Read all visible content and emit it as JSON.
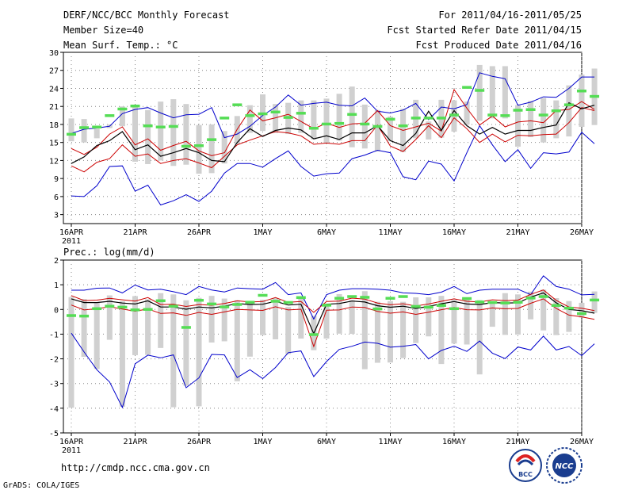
{
  "header": {
    "title": "DERF/NCC/BCC Monthly Forecast",
    "member_size": "Member Size=40",
    "variable": "Mean Surf. Temp.: °C",
    "period": "For 2011/04/16-2011/05/25",
    "refer_date": "Fcst Started Refer Date 2011/04/15",
    "produced_date": "Fcst Produced Date 2011/04/16"
  },
  "footer": {
    "url": "http://cmdp.ncc.cma.gov.cn",
    "credit": "GrADS: COLA/IGES",
    "logo_bcc": "BCC",
    "logo_ncc": "NCC"
  },
  "colors": {
    "envelope": "#0000cc",
    "spread": "#cc0000",
    "mean": "#000000",
    "box": "#d0d0d0",
    "marker": "#55dd55",
    "grid": "#888888"
  },
  "chart_data": [
    {
      "type": "line",
      "title": "Mean Surf. Temp.: °C",
      "x_ticks": [
        "16APR",
        "21APR",
        "26APR",
        "1MAY",
        "6MAY",
        "11MAY",
        "16MAY",
        "21MAY",
        "26MAY"
      ],
      "x_sublabel": "2011",
      "ylim": [
        1.5,
        30
      ],
      "y_ticks": [
        3,
        6,
        9,
        12,
        15,
        18,
        21,
        24,
        27,
        30
      ],
      "grid": true,
      "series": [
        {
          "name": "max",
          "values": [
            16.5,
            17.2,
            17.4,
            17.7,
            19.8,
            20.5,
            20.8,
            19.9,
            19.1,
            19.6,
            19.7,
            20.8,
            15.8,
            16.4,
            17.7,
            19.5,
            20.9,
            22.9,
            21.2,
            21.5,
            21.7,
            21.2,
            21.1,
            22.4,
            20.2,
            19.9,
            20.4,
            21.5,
            18.8,
            20.9,
            20.6,
            21.3,
            26.6,
            26.0,
            25.6,
            21.2,
            21.7,
            22.6,
            22.5,
            24.0,
            25.9,
            25.9
          ]
        },
        {
          "name": "upper",
          "values": [
            14.0,
            13.0,
            14.2,
            16.4,
            17.6,
            14.6,
            15.6,
            13.7,
            14.5,
            15.2,
            13.6,
            12.8,
            13.3,
            17.2,
            20.4,
            18.6,
            19.1,
            19.7,
            18.5,
            17.3,
            18.2,
            17.5,
            18.1,
            18.2,
            20.3,
            17.8,
            17.0,
            17.6,
            18.2,
            16.9,
            23.8,
            20.7,
            17.9,
            19.4,
            17.6,
            18.4,
            18.6,
            18.3,
            20.3,
            20.5,
            21.8,
            20.5
          ]
        },
        {
          "name": "mean",
          "values": [
            11.5,
            12.6,
            14.5,
            15.3,
            16.8,
            13.8,
            14.6,
            12.7,
            13.3,
            14.0,
            13.3,
            12.0,
            11.8,
            15.0,
            17.3,
            16.0,
            17.0,
            17.4,
            17.1,
            15.6,
            16.1,
            15.5,
            16.6,
            16.6,
            17.8,
            15.3,
            14.5,
            16.5,
            20.2,
            17.0,
            20.3,
            17.8,
            16.4,
            17.5,
            16.4,
            17.0,
            17.0,
            17.5,
            17.9,
            21.6,
            20.6,
            21.2
          ]
        },
        {
          "name": "lower",
          "values": [
            11.1,
            10.1,
            11.7,
            12.3,
            14.6,
            12.7,
            13.1,
            11.5,
            12.0,
            12.3,
            11.6,
            10.8,
            12.7,
            14.6,
            15.4,
            16.1,
            16.8,
            16.6,
            16.1,
            14.7,
            14.9,
            14.7,
            15.3,
            15.3,
            17.9,
            14.4,
            13.5,
            15.5,
            17.8,
            15.8,
            19.1,
            17.3,
            15.0,
            16.4,
            15.1,
            16.2,
            16.1,
            16.3,
            16.4,
            18.3,
            20.8,
            20.3
          ]
        },
        {
          "name": "min",
          "values": [
            6.1,
            6.0,
            7.8,
            11.0,
            11.1,
            6.9,
            7.9,
            4.6,
            5.3,
            6.3,
            5.2,
            6.9,
            9.9,
            11.5,
            11.5,
            10.9,
            12.3,
            13.6,
            11.0,
            9.4,
            9.8,
            9.9,
            12.3,
            12.9,
            13.7,
            13.3,
            9.3,
            8.8,
            11.9,
            11.4,
            8.6,
            13.3,
            17.8,
            14.6,
            11.8,
            13.8,
            10.7,
            13.3,
            13.1,
            13.4,
            16.7,
            14.8
          ]
        },
        {
          "name": "box_low",
          "values": [
            15.2,
            15.0,
            15.7,
            17.4,
            17.7,
            11.8,
            11.4,
            12.0,
            11.1,
            11.3,
            9.8,
            9.9,
            11.5,
            14.7,
            16.6,
            16.9,
            16.6,
            16.4,
            16.6,
            15.5,
            14.9,
            15.3,
            14.2,
            14.0,
            13.5,
            15.2,
            13.4,
            15.7,
            15.5,
            15.8,
            16.8,
            18.0,
            18.6,
            19.0,
            19.0,
            14.3,
            15.9,
            15.0,
            15.7,
            16.0,
            17.6,
            17.9
          ]
        },
        {
          "name": "box_high",
          "values": [
            19.0,
            18.9,
            17.3,
            18.0,
            21.0,
            21.0,
            20.4,
            21.8,
            22.2,
            21.4,
            17.9,
            18.0,
            16.9,
            19.4,
            21.2,
            23.0,
            21.4,
            21.6,
            22.0,
            22.0,
            22.3,
            23.1,
            24.3,
            21.3,
            20.4,
            19.3,
            20.6,
            22.1,
            18.5,
            22.1,
            22.0,
            21.8,
            27.9,
            27.7,
            27.7,
            21.2,
            21.9,
            22.4,
            22.0,
            24.5,
            26.3,
            27.3
          ]
        },
        {
          "name": "median",
          "values": [
            16.4,
            17.5,
            17.6,
            19.5,
            20.6,
            21.1,
            17.8,
            17.6,
            17.7,
            14.4,
            14.5,
            15.5,
            19.1,
            21.3,
            19.5,
            19.8,
            20.1,
            19.2,
            19.9,
            17.4,
            18.1,
            18.2,
            19.7,
            18.1,
            17.7,
            18.9,
            17.8,
            19.1,
            19.1,
            19.1,
            19.6,
            24.2,
            23.7,
            19.6,
            19.5,
            20.4,
            20.5,
            19.6,
            20.3,
            21.3,
            23.6,
            22.7
          ]
        }
      ]
    },
    {
      "type": "line",
      "title": "Prec.: log(mm/d)",
      "x_ticks": [
        "16APR",
        "21APR",
        "26APR",
        "1MAY",
        "6MAY",
        "11MAY",
        "16MAY",
        "21MAY",
        "26MAY"
      ],
      "x_sublabel": "2011",
      "ylim": [
        -5,
        2
      ],
      "y_ticks": [
        -5,
        -4,
        -3,
        -2,
        -1,
        0,
        1,
        2
      ],
      "grid": true,
      "series": [
        {
          "name": "max",
          "values": [
            0.78,
            0.78,
            0.86,
            0.87,
            0.67,
            0.99,
            0.79,
            0.82,
            0.72,
            0.6,
            0.93,
            0.79,
            0.71,
            0.87,
            0.84,
            0.82,
            1.09,
            0.6,
            0.67,
            -0.39,
            0.6,
            0.78,
            0.84,
            0.84,
            0.82,
            0.78,
            0.67,
            0.65,
            0.6,
            0.7,
            0.93,
            0.64,
            0.78,
            0.82,
            0.82,
            0.82,
            0.6,
            1.36,
            0.93,
            0.82,
            0.59,
            0.61
          ]
        },
        {
          "name": "upper",
          "values": [
            0.56,
            0.36,
            0.38,
            0.45,
            0.39,
            0.34,
            0.48,
            0.2,
            0.21,
            0.12,
            0.2,
            0.17,
            0.24,
            0.35,
            0.3,
            0.32,
            0.48,
            0.29,
            0.32,
            -0.12,
            0.32,
            0.34,
            0.46,
            0.42,
            0.26,
            0.19,
            0.23,
            0.14,
            0.22,
            0.33,
            0.43,
            0.33,
            0.3,
            0.39,
            0.36,
            0.38,
            0.61,
            0.79,
            0.37,
            0.1,
            0.05,
            -0.05
          ]
        },
        {
          "name": "mean",
          "values": [
            0.43,
            0.28,
            0.28,
            0.33,
            0.26,
            0.22,
            0.35,
            0.1,
            0.1,
            0.01,
            0.1,
            0.06,
            0.13,
            0.24,
            0.2,
            0.21,
            0.33,
            0.18,
            0.21,
            -0.98,
            0.21,
            0.24,
            0.34,
            0.3,
            0.15,
            0.09,
            0.13,
            0.04,
            0.12,
            0.23,
            0.32,
            0.22,
            0.2,
            0.28,
            0.26,
            0.27,
            0.5,
            0.67,
            0.27,
            0.0,
            -0.05,
            -0.15
          ]
        },
        {
          "name": "lower",
          "values": [
            0.18,
            -0.02,
            0.03,
            0.11,
            0.02,
            -0.07,
            0.02,
            -0.16,
            -0.14,
            -0.24,
            -0.12,
            -0.2,
            -0.1,
            0.0,
            -0.02,
            -0.04,
            0.11,
            -0.02,
            0.01,
            -1.5,
            -0.03,
            -0.02,
            0.1,
            0.08,
            -0.08,
            -0.15,
            -0.1,
            -0.2,
            -0.11,
            -0.01,
            0.08,
            -0.01,
            -0.02,
            0.06,
            0.03,
            0.04,
            0.25,
            0.43,
            0.04,
            -0.23,
            -0.3,
            -0.4
          ]
        },
        {
          "name": "min",
          "values": [
            -0.96,
            -1.72,
            -2.44,
            -2.94,
            -3.97,
            -2.2,
            -1.85,
            -1.96,
            -1.84,
            -3.17,
            -2.77,
            -1.82,
            -1.84,
            -2.76,
            -2.44,
            -2.8,
            -2.35,
            -1.75,
            -1.68,
            -2.72,
            -2.11,
            -1.62,
            -1.49,
            -1.32,
            -1.37,
            -1.53,
            -1.49,
            -1.42,
            -2.0,
            -1.66,
            -1.49,
            -1.7,
            -1.28,
            -1.77,
            -1.99,
            -1.52,
            -1.64,
            -1.08,
            -1.64,
            -1.5,
            -1.87,
            -1.39
          ]
        },
        {
          "name": "box_low",
          "values": [
            -3.98,
            -1.92,
            -2.41,
            -1.23,
            -3.94,
            -1.85,
            -1.84,
            -1.56,
            -3.96,
            -3.09,
            -3.92,
            -1.34,
            -1.29,
            -2.91,
            -1.91,
            -1.04,
            -1.21,
            -1.81,
            -1.18,
            -1.65,
            -1.18,
            -0.98,
            -0.99,
            -2.42,
            -2.16,
            -2.15,
            -1.97,
            -1.36,
            -1.09,
            -2.21,
            -1.38,
            -1.42,
            -2.63,
            -0.7,
            -1.03,
            -1.02,
            -0.4,
            -0.85,
            -1.04,
            -0.91,
            -0.33,
            -0.14
          ]
        },
        {
          "name": "box_high",
          "values": [
            0.5,
            0.42,
            0.28,
            0.57,
            0.33,
            0.54,
            0.41,
            0.66,
            0.61,
            0.37,
            0.47,
            0.55,
            0.44,
            0.37,
            0.25,
            0.39,
            0.46,
            0.1,
            0.5,
            -0.26,
            0.24,
            0.62,
            0.38,
            0.74,
            0.31,
            0.34,
            0.31,
            0.49,
            0.49,
            0.55,
            0.4,
            0.48,
            0.38,
            0.28,
            0.66,
            0.61,
            0.72,
            0.8,
            0.46,
            0.34,
            0.27,
            0.73
          ]
        },
        {
          "name": "median",
          "values": [
            -0.24,
            -0.26,
            0.04,
            0.14,
            0.1,
            -0.01,
            0.01,
            0.36,
            0.14,
            -0.72,
            0.38,
            0.23,
            0.11,
            0.21,
            0.3,
            0.58,
            0.34,
            0.29,
            0.49,
            -1.01,
            0.18,
            0.46,
            0.53,
            0.5,
            0.03,
            0.46,
            0.53,
            0.13,
            0.1,
            0.17,
            0.04,
            0.45,
            0.31,
            0.29,
            0.27,
            0.3,
            0.47,
            0.53,
            0.17,
            0.06,
            -0.16,
            0.39
          ]
        }
      ]
    }
  ]
}
